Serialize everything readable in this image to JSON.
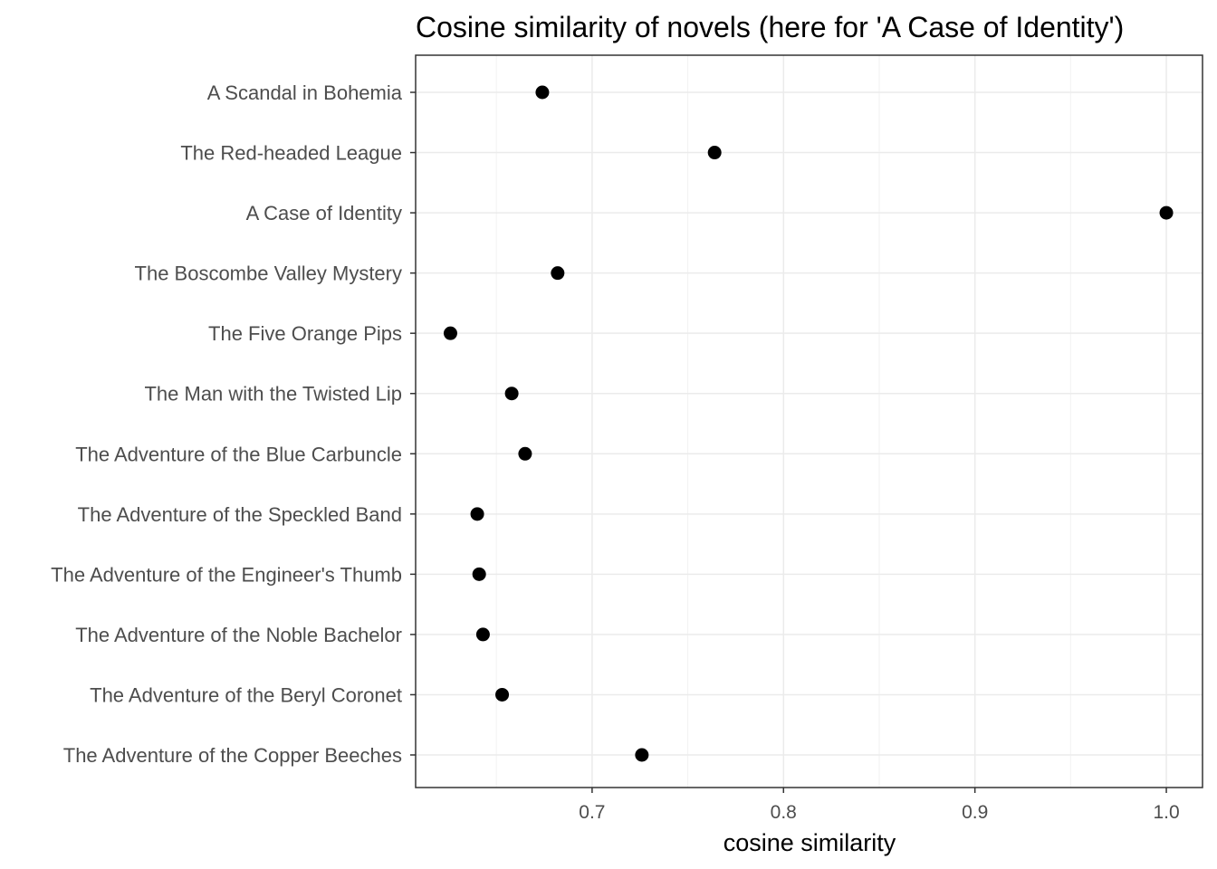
{
  "chart_data": {
    "type": "scatter",
    "title": "Cosine similarity of novels (here for 'A Case of Identity')",
    "xlabel": "cosine similarity",
    "ylabel": "",
    "xlim": [
      0.6078,
      1.0189
    ],
    "xticks": [
      0.7,
      0.8,
      0.9,
      1.0
    ],
    "xtick_labels": [
      "0.7",
      "0.8",
      "0.9",
      "1.0"
    ],
    "grid": true,
    "point_color": "#000000",
    "categories": [
      "A Scandal in Bohemia",
      "The Red-headed League",
      "A Case of Identity",
      "The Boscombe Valley Mystery",
      "The Five Orange Pips",
      "The Man with the Twisted Lip",
      "The Adventure of the Blue Carbuncle",
      "The Adventure of the Speckled Band",
      "The Adventure of the Engineer's Thumb",
      "The Adventure of the Noble Bachelor",
      "The Adventure of the Beryl Coronet",
      "The Adventure of the Copper Beeches"
    ],
    "values": [
      0.674,
      0.764,
      1.0,
      0.682,
      0.626,
      0.658,
      0.665,
      0.64,
      0.641,
      0.643,
      0.653,
      0.726
    ]
  }
}
